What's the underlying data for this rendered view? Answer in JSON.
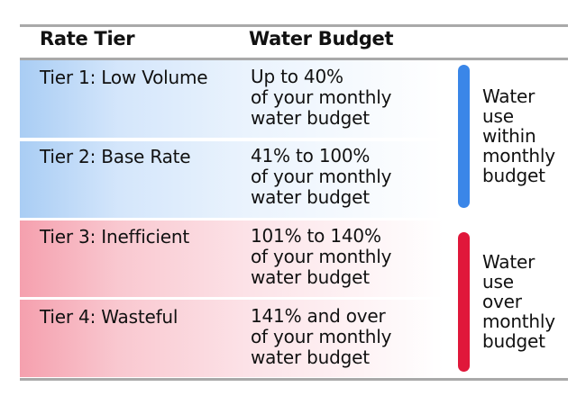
{
  "header": {
    "rate_tier": "Rate Tier",
    "water_budget": "Water Budget"
  },
  "rows": [
    {
      "tier": "Tier 1: Low Volume",
      "budget_line1": "Up to 40%",
      "budget_line2": "of your monthly",
      "budget_line3": "water budget"
    },
    {
      "tier": "Tier 2: Base Rate",
      "budget_line1": "41% to 100%",
      "budget_line2": "of your monthly",
      "budget_line3": "water budget"
    },
    {
      "tier": "Tier 3: Inefficient",
      "budget_line1": "101% to 140%",
      "budget_line2": "of your monthly",
      "budget_line3": "water budget"
    },
    {
      "tier": "Tier 4: Wasteful",
      "budget_line1": "141% and over",
      "budget_line2": "of your monthly",
      "budget_line3": "water budget"
    }
  ],
  "groups": {
    "within": {
      "line1": "Water",
      "line2": "use",
      "line3": "within",
      "line4": "monthly",
      "line5": "budget",
      "color": "#3a86e8"
    },
    "over": {
      "line1": "Water",
      "line2": "use",
      "line3": "over",
      "line4": "monthly",
      "line5": "budget",
      "color": "#e0173a"
    }
  }
}
